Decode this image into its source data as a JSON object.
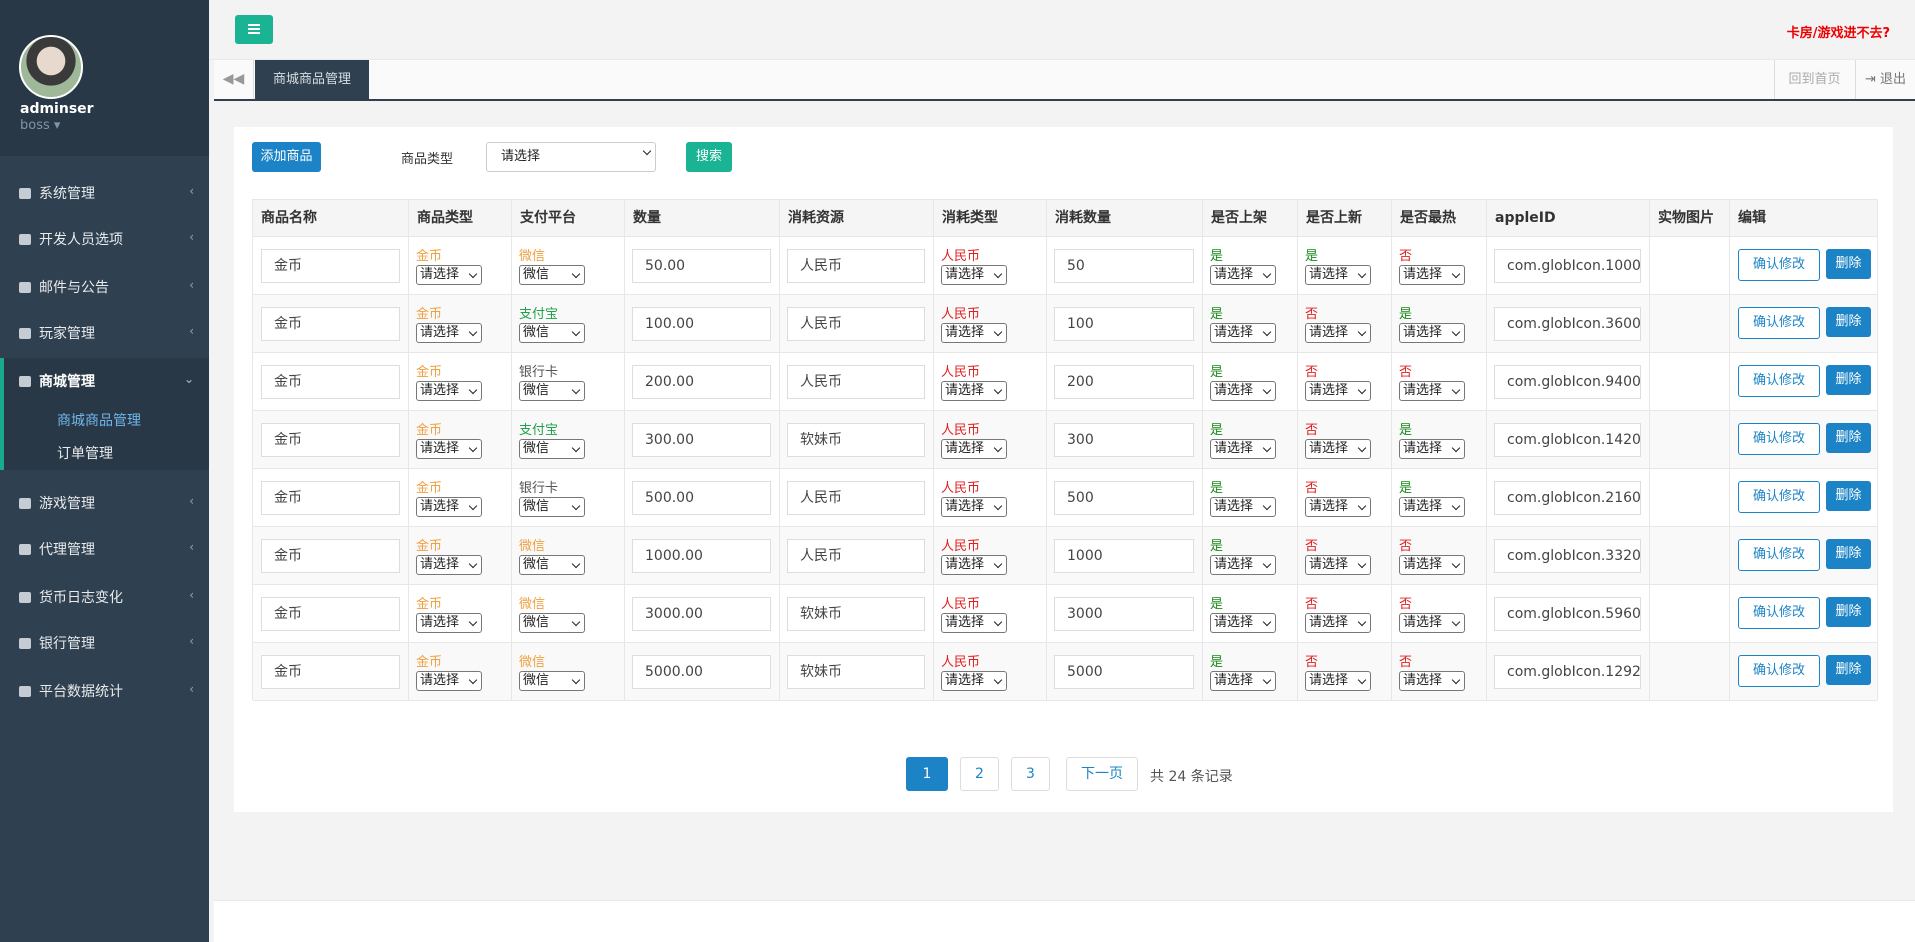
{
  "sidebar": {
    "user": "adminser",
    "role": "boss",
    "menu": [
      "系统管理",
      "开发人员选项",
      "邮件与公告",
      "玩家管理",
      "商城管理",
      "游戏管理",
      "代理管理",
      "货币日志变化",
      "银行管理",
      "平台数据统计"
    ],
    "submenu": [
      "商城商品管理",
      "订单管理"
    ]
  },
  "header": {
    "help": "卡房/游戏进不去?",
    "tab": "商城商品管理",
    "home": "回到首页",
    "logout": "退出"
  },
  "toolbar": {
    "add": "添加商品",
    "filter_label": "商品类型",
    "filter_value": "请选择",
    "search": "搜索"
  },
  "table": {
    "columns": [
      "商品名称",
      "商品类型",
      "支付平台",
      "数量",
      "消耗资源",
      "消耗类型",
      "消耗数量",
      "是否上架",
      "是否上新",
      "是否最热",
      "appleID",
      "实物图片",
      "编辑"
    ],
    "select_placeholder": "请选择",
    "platform_select": "微信",
    "confirm": "确认修改",
    "delete": "删除",
    "rows": [
      [
        "金币",
        "金币",
        "微信",
        "50.00",
        "人民币",
        "人民币",
        "50",
        "是",
        "是",
        "否",
        "com.globIcon.1000"
      ],
      [
        "金币",
        "金币",
        "支付宝",
        "100.00",
        "人民币",
        "人民币",
        "100",
        "是",
        "否",
        "是",
        "com.globIcon.3600"
      ],
      [
        "金币",
        "金币",
        "银行卡",
        "200.00",
        "人民币",
        "人民币",
        "200",
        "是",
        "否",
        "否",
        "com.globIcon.9400"
      ],
      [
        "金币",
        "金币",
        "支付宝",
        "300.00",
        "软妹币",
        "人民币",
        "300",
        "是",
        "否",
        "是",
        "com.globIcon.1420"
      ],
      [
        "金币",
        "金币",
        "银行卡",
        "500.00",
        "人民币",
        "人民币",
        "500",
        "是",
        "否",
        "是",
        "com.globIcon.2160"
      ],
      [
        "金币",
        "金币",
        "微信",
        "1000.00",
        "人民币",
        "人民币",
        "1000",
        "是",
        "否",
        "否",
        "com.globIcon.3320"
      ],
      [
        "金币",
        "金币",
        "微信",
        "3000.00",
        "软妹币",
        "人民币",
        "3000",
        "是",
        "否",
        "否",
        "com.globIcon.5960"
      ],
      [
        "金币",
        "金币",
        "微信",
        "5000.00",
        "软妹币",
        "人民币",
        "5000",
        "是",
        "否",
        "否",
        "com.globIcon.1292"
      ]
    ]
  },
  "palette": {
    "是": "#1a8a1a",
    "否": "#e02020",
    "金币": "#f0a040",
    "微信": "#f0a040",
    "支付宝": "#23a04a",
    "银行卡": "#555555",
    "人民币": "#e02020"
  },
  "pagination": {
    "pages": [
      "1",
      "2",
      "3"
    ],
    "next": "下一页",
    "total": "共 24 条记录"
  }
}
